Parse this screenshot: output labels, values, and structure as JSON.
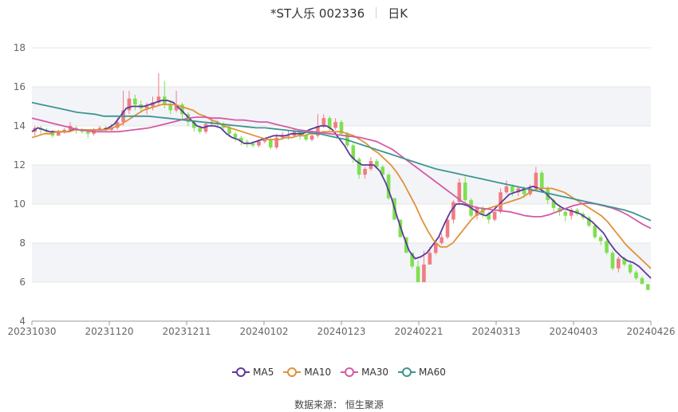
{
  "title": {
    "name": "*ST人乐 002336",
    "period": "日K"
  },
  "source": {
    "label": "数据来源：",
    "provider": "恒生聚源"
  },
  "colors": {
    "up": "#f07c82",
    "down": "#7ee04f",
    "MA5": "#5b3a9c",
    "MA10": "#e0923a",
    "MA30": "#d45aa6",
    "MA60": "#3d9591",
    "grid": "#e6e6e6",
    "band": "#f3f4f8",
    "axis": "#666666"
  },
  "chart_data": {
    "type": "candlestick",
    "title": "*ST人乐 002336",
    "ylim": [
      4,
      18
    ],
    "yticks": [
      4,
      6,
      8,
      10,
      12,
      14,
      16,
      18
    ],
    "xtick_labels": [
      "20231030",
      "20231120",
      "20231211",
      "20240102",
      "20240123",
      "20240221",
      "20240313",
      "20240403",
      "20240426"
    ],
    "grid": true,
    "legend_position": "bottom",
    "bars": [
      [
        13.7,
        13.9,
        14.0,
        13.5
      ],
      [
        13.9,
        13.8,
        14.0,
        13.6
      ],
      [
        13.8,
        13.7,
        13.9,
        13.6
      ],
      [
        13.7,
        13.5,
        13.8,
        13.4
      ],
      [
        13.5,
        13.7,
        13.8,
        13.5
      ],
      [
        13.7,
        13.8,
        13.9,
        13.6
      ],
      [
        13.8,
        14.0,
        14.2,
        13.7
      ],
      [
        13.9,
        13.8,
        14.0,
        13.6
      ],
      [
        13.8,
        13.7,
        13.9,
        13.6
      ],
      [
        13.7,
        13.6,
        13.8,
        13.4
      ],
      [
        13.6,
        13.8,
        13.9,
        13.5
      ],
      [
        13.8,
        13.9,
        14.0,
        13.7
      ],
      [
        13.9,
        13.8,
        14.0,
        13.7
      ],
      [
        13.8,
        13.9,
        14.1,
        13.7
      ],
      [
        13.9,
        14.2,
        14.4,
        13.8
      ],
      [
        14.2,
        14.8,
        15.8,
        14.0
      ],
      [
        14.8,
        15.4,
        15.8,
        14.6
      ],
      [
        15.4,
        15.1,
        15.6,
        14.8
      ],
      [
        15.1,
        14.9,
        15.3,
        14.7
      ],
      [
        14.9,
        15.0,
        15.2,
        14.6
      ],
      [
        15.0,
        15.2,
        15.5,
        14.8
      ],
      [
        15.2,
        15.5,
        16.7,
        15.0
      ],
      [
        15.5,
        15.1,
        16.3,
        14.9
      ],
      [
        15.1,
        14.8,
        15.3,
        14.6
      ],
      [
        14.8,
        15.1,
        15.8,
        14.7
      ],
      [
        15.1,
        14.6,
        15.2,
        14.3
      ],
      [
        14.6,
        14.2,
        14.7,
        14.0
      ],
      [
        14.2,
        13.9,
        14.3,
        13.7
      ],
      [
        13.9,
        13.7,
        14.0,
        13.6
      ],
      [
        13.7,
        14.1,
        14.2,
        13.6
      ],
      [
        14.1,
        14.2,
        14.4,
        14.0
      ],
      [
        14.2,
        14.1,
        14.3,
        14.0
      ],
      [
        14.1,
        13.9,
        14.2,
        13.8
      ],
      [
        13.9,
        13.6,
        14.0,
        13.4
      ],
      [
        13.6,
        13.4,
        13.7,
        13.2
      ],
      [
        13.4,
        13.2,
        13.5,
        13.0
      ],
      [
        13.2,
        13.1,
        13.3,
        12.9
      ],
      [
        13.1,
        13.0,
        13.2,
        12.9
      ],
      [
        13.0,
        13.2,
        13.3,
        12.9
      ],
      [
        13.2,
        13.3,
        13.4,
        13.1
      ],
      [
        13.3,
        12.9,
        13.4,
        12.8
      ],
      [
        12.9,
        13.4,
        13.6,
        12.8
      ],
      [
        13.4,
        13.5,
        13.7,
        13.3
      ],
      [
        13.5,
        13.5,
        13.8,
        13.3
      ],
      [
        13.5,
        13.7,
        13.9,
        13.4
      ],
      [
        13.7,
        13.5,
        13.8,
        13.3
      ],
      [
        13.5,
        13.3,
        13.6,
        13.2
      ],
      [
        13.3,
        13.5,
        13.7,
        13.2
      ],
      [
        13.5,
        14.0,
        14.6,
        13.4
      ],
      [
        14.0,
        14.4,
        14.6,
        13.9
      ],
      [
        14.4,
        13.9,
        14.5,
        13.7
      ],
      [
        13.9,
        14.2,
        14.4,
        13.8
      ],
      [
        14.2,
        13.6,
        14.3,
        13.5
      ],
      [
        13.6,
        13.0,
        13.7,
        12.9
      ],
      [
        13.0,
        12.3,
        13.1,
        12.1
      ],
      [
        12.3,
        11.5,
        12.4,
        11.3
      ],
      [
        11.5,
        11.8,
        11.9,
        11.3
      ],
      [
        11.8,
        12.2,
        12.4,
        11.7
      ],
      [
        12.2,
        11.9,
        12.3,
        11.8
      ],
      [
        11.9,
        11.5,
        12.0,
        11.4
      ],
      [
        11.5,
        10.3,
        11.6,
        10.2
      ],
      [
        10.3,
        9.2,
        10.3,
        9.2
      ],
      [
        9.2,
        8.3,
        9.2,
        8.3
      ],
      [
        8.3,
        7.5,
        8.3,
        7.5
      ],
      [
        7.5,
        6.8,
        7.5,
        6.7
      ],
      [
        6.8,
        6.0,
        7.1,
        6.0
      ],
      [
        6.0,
        6.9,
        7.6,
        6.0
      ],
      [
        6.9,
        7.5,
        7.8,
        6.9
      ],
      [
        7.5,
        8.0,
        8.1,
        7.4
      ],
      [
        8.0,
        8.3,
        8.5,
        7.9
      ],
      [
        8.3,
        9.2,
        9.4,
        8.2
      ],
      [
        9.2,
        10.1,
        10.2,
        9.0
      ],
      [
        10.1,
        11.1,
        11.3,
        10.0
      ],
      [
        11.1,
        10.2,
        11.4,
        10.0
      ],
      [
        10.2,
        9.4,
        10.3,
        9.3
      ],
      [
        9.4,
        9.8,
        9.9,
        9.2
      ],
      [
        9.8,
        9.5,
        9.9,
        9.3
      ],
      [
        9.5,
        9.2,
        9.6,
        9.0
      ],
      [
        9.2,
        9.6,
        9.7,
        9.1
      ],
      [
        9.6,
        10.6,
        10.8,
        9.5
      ],
      [
        10.6,
        10.9,
        11.2,
        10.5
      ],
      [
        10.9,
        10.6,
        11.0,
        10.4
      ],
      [
        10.6,
        10.8,
        10.9,
        10.4
      ],
      [
        10.8,
        10.5,
        10.9,
        10.3
      ],
      [
        10.5,
        10.8,
        11.0,
        10.4
      ],
      [
        10.8,
        11.6,
        11.9,
        10.7
      ],
      [
        11.6,
        10.8,
        11.7,
        10.6
      ],
      [
        10.8,
        10.2,
        10.9,
        10.0
      ],
      [
        10.2,
        9.8,
        10.3,
        9.6
      ],
      [
        9.8,
        9.6,
        9.9,
        9.4
      ],
      [
        9.6,
        9.4,
        9.7,
        9.1
      ],
      [
        9.4,
        9.7,
        9.8,
        9.2
      ],
      [
        9.7,
        9.5,
        9.8,
        9.4
      ],
      [
        9.5,
        9.3,
        9.6,
        9.2
      ],
      [
        9.3,
        8.9,
        9.4,
        8.8
      ],
      [
        8.9,
        8.3,
        9.0,
        8.2
      ],
      [
        8.3,
        8.1,
        8.4,
        7.9
      ],
      [
        8.1,
        7.5,
        8.2,
        7.4
      ],
      [
        7.5,
        6.7,
        7.6,
        6.6
      ],
      [
        6.7,
        7.2,
        7.3,
        6.5
      ],
      [
        7.2,
        6.9,
        7.3,
        6.8
      ],
      [
        6.9,
        6.5,
        7.0,
        6.4
      ],
      [
        6.5,
        6.2,
        6.6,
        6.1
      ],
      [
        6.2,
        5.9,
        6.3,
        5.9
      ],
      [
        5.9,
        5.6,
        5.9,
        5.6
      ]
    ],
    "series": [
      {
        "name": "MA5",
        "values": [
          13.7,
          13.9,
          13.8,
          13.7,
          13.7,
          13.7,
          13.7,
          13.8,
          13.8,
          13.8,
          13.8,
          13.8,
          13.8,
          13.9,
          14.1,
          14.5,
          14.9,
          15.0,
          15.0,
          15.0,
          15.1,
          15.2,
          15.3,
          15.3,
          15.2,
          14.9,
          14.6,
          14.3,
          14.0,
          13.9,
          14.0,
          14.0,
          13.9,
          13.6,
          13.4,
          13.3,
          13.1,
          13.1,
          13.2,
          13.3,
          13.4,
          13.5,
          13.5,
          13.5,
          13.6,
          13.6,
          13.6,
          13.8,
          13.9,
          14.0,
          14.0,
          13.8,
          13.4,
          13.0,
          12.5,
          12.2,
          12.0,
          12.0,
          12.0,
          11.7,
          11.1,
          10.3,
          9.3,
          8.4,
          7.6,
          7.2,
          7.3,
          7.5,
          7.9,
          8.3,
          9.0,
          9.6,
          10.0,
          10.0,
          9.9,
          9.7,
          9.5,
          9.4,
          9.6,
          9.9,
          10.2,
          10.5,
          10.6,
          10.7,
          10.8,
          10.9,
          10.8,
          10.6,
          10.3,
          10.0,
          9.8,
          9.7,
          9.6,
          9.5,
          9.3,
          9.1,
          8.8,
          8.5,
          8.0,
          7.6,
          7.3,
          7.1,
          7.0,
          6.8,
          6.5,
          6.2
        ]
      },
      {
        "name": "MA10",
        "values": [
          13.4,
          13.5,
          13.6,
          13.6,
          13.7,
          13.7,
          13.7,
          13.8,
          13.8,
          13.8,
          13.8,
          13.8,
          13.8,
          13.9,
          14.0,
          14.2,
          14.4,
          14.6,
          14.8,
          14.9,
          15.0,
          15.1,
          15.1,
          15.1,
          15.0,
          14.9,
          14.8,
          14.6,
          14.5,
          14.3,
          14.2,
          14.0,
          13.9,
          13.8,
          13.7,
          13.6,
          13.5,
          13.4,
          13.3,
          13.3,
          13.3,
          13.4,
          13.4,
          13.5,
          13.5,
          13.6,
          13.6,
          13.7,
          13.7,
          13.7,
          13.7,
          13.6,
          13.5,
          13.3,
          13.1,
          12.8,
          12.6,
          12.3,
          12.0,
          11.6,
          11.1,
          10.5,
          9.9,
          9.2,
          8.6,
          8.1,
          7.8,
          7.8,
          8.0,
          8.4,
          8.8,
          9.2,
          9.5,
          9.7,
          9.8,
          9.9,
          10.0,
          10.1,
          10.2,
          10.3,
          10.5,
          10.7,
          10.8,
          10.8,
          10.8,
          10.7,
          10.6,
          10.4,
          10.2,
          10.0,
          9.8,
          9.6,
          9.4,
          9.1,
          8.7,
          8.3,
          7.9,
          7.6,
          7.3,
          7.0,
          6.7
        ]
      },
      {
        "name": "MA30",
        "values": [
          14.4,
          14.3,
          14.2,
          14.1,
          14.0,
          13.9,
          13.8,
          13.75,
          13.7,
          13.7,
          13.7,
          13.7,
          13.75,
          13.8,
          13.85,
          13.9,
          14.0,
          14.1,
          14.2,
          14.3,
          14.4,
          14.45,
          14.45,
          14.4,
          14.4,
          14.35,
          14.3,
          14.3,
          14.25,
          14.2,
          14.2,
          14.1,
          14.0,
          13.9,
          13.8,
          13.75,
          13.7,
          13.65,
          13.6,
          13.55,
          13.5,
          13.45,
          13.4,
          13.3,
          13.2,
          13.0,
          12.8,
          12.5,
          12.2,
          11.9,
          11.6,
          11.3,
          11.0,
          10.7,
          10.4,
          10.1,
          9.9,
          9.8,
          9.75,
          9.7,
          9.65,
          9.6,
          9.5,
          9.4,
          9.35,
          9.35,
          9.45,
          9.6,
          9.75,
          9.9,
          10.0,
          10.05,
          10.0,
          9.9,
          9.8,
          9.65,
          9.45,
          9.2,
          8.95,
          8.75
        ]
      },
      {
        "name": "MA60",
        "values": [
          15.2,
          15.1,
          15.0,
          14.9,
          14.8,
          14.7,
          14.65,
          14.6,
          14.5,
          14.5,
          14.5,
          14.5,
          14.5,
          14.5,
          14.45,
          14.4,
          14.35,
          14.3,
          14.25,
          14.2,
          14.15,
          14.1,
          14.05,
          14.0,
          13.95,
          13.9,
          13.9,
          13.85,
          13.8,
          13.75,
          13.7,
          13.65,
          13.6,
          13.5,
          13.4,
          13.3,
          13.15,
          13.0,
          12.85,
          12.7,
          12.55,
          12.4,
          12.25,
          12.1,
          11.95,
          11.8,
          11.7,
          11.6,
          11.5,
          11.4,
          11.3,
          11.2,
          11.1,
          11.0,
          10.9,
          10.8,
          10.7,
          10.6,
          10.5,
          10.4,
          10.3,
          10.2,
          10.1,
          10.0,
          9.9,
          9.8,
          9.7,
          9.55,
          9.35,
          9.15
        ]
      }
    ]
  }
}
